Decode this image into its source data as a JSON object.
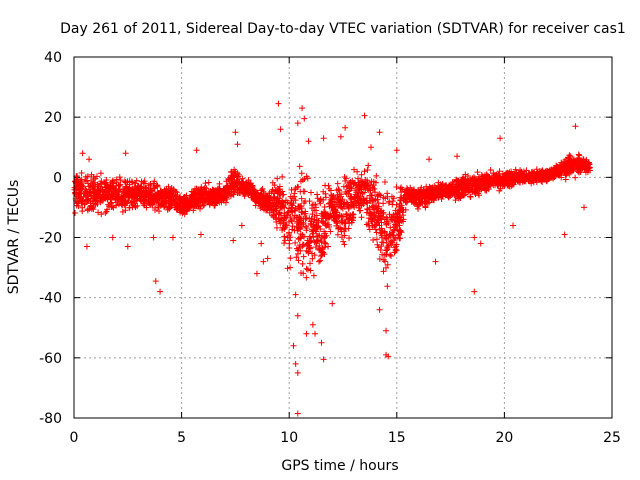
{
  "chart_data": {
    "type": "scatter",
    "title": "Day 261 of 2011, Sidereal Day-to-day VTEC variation (SDTVAR) for receiver cas1",
    "xlabel": "GPS time / hours",
    "ylabel": "SDTVAR / TECUs",
    "xlim": [
      0,
      25
    ],
    "ylim": [
      -80,
      40
    ],
    "x_ticks": [
      0,
      5,
      10,
      15,
      20,
      25
    ],
    "y_ticks": [
      -80,
      -60,
      -40,
      -20,
      0,
      20,
      40
    ],
    "grid": true,
    "series": [
      {
        "name": "SDTVAR",
        "color": "#ff0000",
        "marker": "plus",
        "band": [
          {
            "x": 0.0,
            "lo": -14,
            "hi": 3
          },
          {
            "x": 0.5,
            "lo": -14,
            "hi": 4
          },
          {
            "x": 1.0,
            "lo": -13,
            "hi": 3
          },
          {
            "x": 1.5,
            "lo": -14,
            "hi": 3
          },
          {
            "x": 2.0,
            "lo": -13,
            "hi": 2
          },
          {
            "x": 2.5,
            "lo": -12,
            "hi": 1
          },
          {
            "x": 3.0,
            "lo": -11,
            "hi": 0
          },
          {
            "x": 3.5,
            "lo": -12,
            "hi": 0
          },
          {
            "x": 4.0,
            "lo": -13,
            "hi": -1
          },
          {
            "x": 4.5,
            "lo": -13,
            "hi": -2
          },
          {
            "x": 5.0,
            "lo": -15,
            "hi": -4
          },
          {
            "x": 5.5,
            "lo": -13,
            "hi": -3
          },
          {
            "x": 6.0,
            "lo": -12,
            "hi": 0
          },
          {
            "x": 6.5,
            "lo": -11,
            "hi": -2
          },
          {
            "x": 7.0,
            "lo": -10,
            "hi": -1
          },
          {
            "x": 7.5,
            "lo": -8,
            "hi": 6
          },
          {
            "x": 8.0,
            "lo": -8,
            "hi": 1
          },
          {
            "x": 8.5,
            "lo": -11,
            "hi": -2
          },
          {
            "x": 9.0,
            "lo": -14,
            "hi": -3
          },
          {
            "x": 9.5,
            "lo": -20,
            "hi": 3
          },
          {
            "x": 10.0,
            "lo": -35,
            "hi": 5
          },
          {
            "x": 10.5,
            "lo": -38,
            "hi": 8
          },
          {
            "x": 11.0,
            "lo": -40,
            "hi": 3
          },
          {
            "x": 11.5,
            "lo": -35,
            "hi": 2
          },
          {
            "x": 12.0,
            "lo": -18,
            "hi": 0
          },
          {
            "x": 12.5,
            "lo": -28,
            "hi": 5
          },
          {
            "x": 13.0,
            "lo": -20,
            "hi": 5
          },
          {
            "x": 13.5,
            "lo": -15,
            "hi": 6
          },
          {
            "x": 14.0,
            "lo": -30,
            "hi": 5
          },
          {
            "x": 14.5,
            "lo": -42,
            "hi": 2
          },
          {
            "x": 15.0,
            "lo": -30,
            "hi": 0
          },
          {
            "x": 15.5,
            "lo": -10,
            "hi": -1
          },
          {
            "x": 16.0,
            "lo": -12,
            "hi": -2
          },
          {
            "x": 16.5,
            "lo": -10,
            "hi": -1
          },
          {
            "x": 17.0,
            "lo": -9,
            "hi": -1
          },
          {
            "x": 17.5,
            "lo": -8,
            "hi": 0
          },
          {
            "x": 18.0,
            "lo": -9,
            "hi": 2
          },
          {
            "x": 18.5,
            "lo": -8,
            "hi": 2
          },
          {
            "x": 19.0,
            "lo": -7,
            "hi": 3
          },
          {
            "x": 19.5,
            "lo": -5,
            "hi": 3
          },
          {
            "x": 20.0,
            "lo": -5,
            "hi": 3
          },
          {
            "x": 20.5,
            "lo": -3,
            "hi": 3
          },
          {
            "x": 21.0,
            "lo": -3,
            "hi": 3
          },
          {
            "x": 21.5,
            "lo": -2,
            "hi": 3
          },
          {
            "x": 22.0,
            "lo": -2,
            "hi": 3
          },
          {
            "x": 22.5,
            "lo": -1,
            "hi": 5
          },
          {
            "x": 23.0,
            "lo": -1,
            "hi": 9
          },
          {
            "x": 23.5,
            "lo": 0,
            "hi": 8
          },
          {
            "x": 24.0,
            "lo": 1,
            "hi": 6
          }
        ],
        "points": [
          [
            9.5,
            24.5
          ],
          [
            10.6,
            23
          ],
          [
            10.7,
            19.5
          ],
          [
            10.4,
            18
          ],
          [
            9.6,
            16
          ],
          [
            7.5,
            15
          ],
          [
            11.6,
            13
          ],
          [
            12.6,
            16.5
          ],
          [
            13.5,
            20.5
          ],
          [
            13.8,
            10
          ],
          [
            23.3,
            17
          ],
          [
            19.8,
            13
          ],
          [
            2.4,
            8
          ],
          [
            5.7,
            9
          ],
          [
            0.4,
            8
          ],
          [
            0.7,
            6
          ],
          [
            7.6,
            11
          ],
          [
            10.9,
            12
          ],
          [
            12.4,
            13.5
          ],
          [
            15.0,
            9
          ],
          [
            16.5,
            6
          ],
          [
            17.8,
            7
          ],
          [
            14.2,
            15
          ],
          [
            0.6,
            -23
          ],
          [
            2.5,
            -23
          ],
          [
            1.8,
            -20
          ],
          [
            3.7,
            -20
          ],
          [
            4.6,
            -20
          ],
          [
            5.9,
            -19
          ],
          [
            7.4,
            -21
          ],
          [
            7.8,
            -16
          ],
          [
            8.7,
            -22
          ],
          [
            9.0,
            -27
          ],
          [
            8.5,
            -32
          ],
          [
            8.8,
            -28
          ],
          [
            3.8,
            -34.5
          ],
          [
            4.0,
            -38
          ],
          [
            16.8,
            -28
          ],
          [
            18.6,
            -38
          ],
          [
            20.4,
            -16
          ],
          [
            18.6,
            -20
          ],
          [
            18.9,
            -22
          ],
          [
            10.3,
            -39
          ],
          [
            10.4,
            -46
          ],
          [
            10.2,
            -56
          ],
          [
            10.3,
            -62
          ],
          [
            10.4,
            -65
          ],
          [
            10.4,
            -78.5
          ],
          [
            10.8,
            -52
          ],
          [
            11.1,
            -49
          ],
          [
            11.2,
            -52
          ],
          [
            11.5,
            -55
          ],
          [
            11.6,
            -60.5
          ],
          [
            12.0,
            -42
          ],
          [
            14.5,
            -51
          ],
          [
            14.5,
            -59
          ],
          [
            14.6,
            -59.5
          ],
          [
            14.2,
            -44
          ],
          [
            22.8,
            -19
          ],
          [
            23.7,
            -10
          ]
        ]
      }
    ]
  }
}
